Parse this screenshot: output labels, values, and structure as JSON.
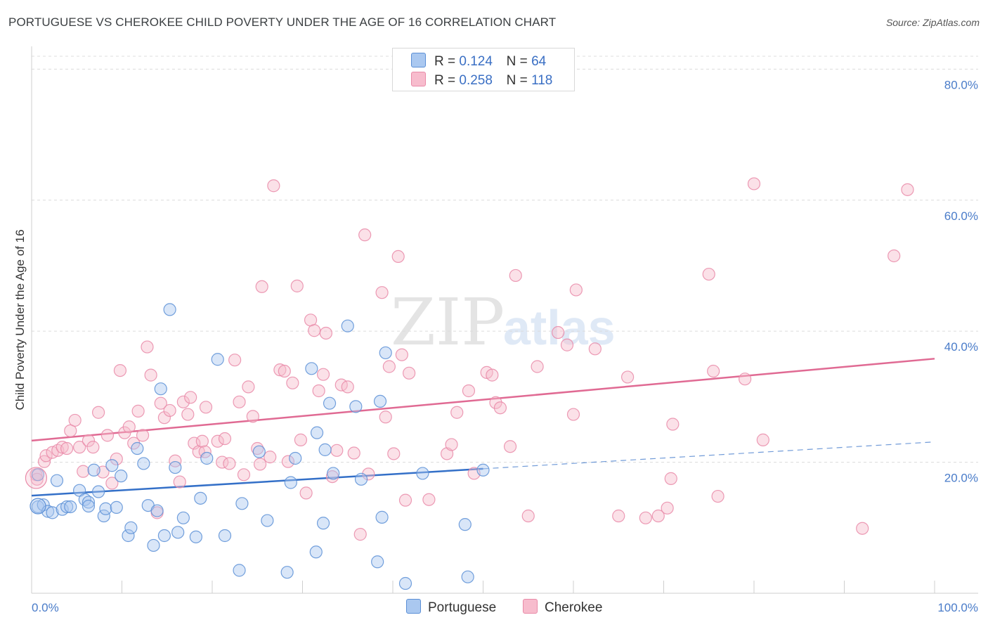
{
  "title": "PORTUGUESE VS CHEROKEE CHILD POVERTY UNDER THE AGE OF 16 CORRELATION CHART",
  "source": "Source: ZipAtlas.com",
  "watermark": {
    "zip": "ZIP",
    "atlas": "atlas"
  },
  "legend": {
    "r_label": "R =",
    "n_label": "N =",
    "rows": [
      {
        "r": "0.124",
        "n": "64"
      },
      {
        "r": "0.258",
        "n": "118"
      }
    ]
  },
  "colors": {
    "portuguese_fill": "#aac8f0",
    "portuguese_stroke": "#5b8fd6",
    "portuguese_line": "#3470c8",
    "cherokee_fill": "#f7bccd",
    "cherokee_stroke": "#e98aa8",
    "cherokee_line": "#e06a93",
    "grid": "#dcdcdc",
    "tick_text": "#4a7cc9"
  },
  "chart_data": {
    "type": "scatter",
    "title": "PORTUGUESE VS CHEROKEE CHILD POVERTY UNDER THE AGE OF 16 CORRELATION CHART",
    "xlabel": "",
    "ylabel": "Child Poverty Under the Age of 16",
    "xlim": [
      0,
      100
    ],
    "ylim": [
      0,
      80
    ],
    "x_tick_labels": [
      "0.0%",
      "100.0%"
    ],
    "y_ticks": [
      20,
      40,
      60,
      80
    ],
    "y_tick_labels": [
      "20.0%",
      "40.0%",
      "60.0%",
      "80.0%"
    ],
    "grid": true,
    "legend_position": "bottom",
    "series": [
      {
        "name": "Portuguese",
        "r": 0.124,
        "n": 64,
        "trend": {
          "x": [
            0,
            50
          ],
          "y": [
            14.9,
            19.0
          ]
        },
        "trend_ext": {
          "x": [
            50,
            100
          ],
          "y": [
            19.0,
            23.1
          ]
        },
        "points": [
          [
            0.7,
            18.1
          ],
          [
            0.7,
            13.2
          ],
          [
            1.3,
            13.5
          ],
          [
            1.8,
            12.5
          ],
          [
            2.3,
            12.3
          ],
          [
            2.8,
            17.2
          ],
          [
            3.4,
            12.8
          ],
          [
            3.9,
            13.2
          ],
          [
            4.3,
            13.2
          ],
          [
            5.3,
            15.7
          ],
          [
            5.9,
            14.3
          ],
          [
            6.3,
            13.9
          ],
          [
            6.3,
            13.3
          ],
          [
            6.9,
            18.8
          ],
          [
            7.4,
            15.5
          ],
          [
            8.0,
            11.8
          ],
          [
            8.2,
            12.9
          ],
          [
            8.9,
            19.5
          ],
          [
            9.4,
            13.1
          ],
          [
            9.9,
            17.9
          ],
          [
            10.7,
            8.8
          ],
          [
            11.0,
            10.0
          ],
          [
            11.7,
            22.1
          ],
          [
            12.4,
            19.8
          ],
          [
            12.9,
            13.4
          ],
          [
            13.5,
            7.3
          ],
          [
            13.9,
            12.6
          ],
          [
            14.3,
            31.2
          ],
          [
            14.7,
            8.8
          ],
          [
            15.3,
            43.3
          ],
          [
            15.9,
            19.2
          ],
          [
            16.2,
            9.3
          ],
          [
            16.8,
            11.5
          ],
          [
            18.2,
            8.6
          ],
          [
            18.7,
            14.5
          ],
          [
            19.4,
            20.6
          ],
          [
            20.6,
            35.7
          ],
          [
            21.4,
            8.8
          ],
          [
            23.0,
            3.5
          ],
          [
            23.3,
            13.7
          ],
          [
            25.2,
            21.6
          ],
          [
            26.1,
            11.1
          ],
          [
            28.3,
            3.2
          ],
          [
            28.7,
            16.9
          ],
          [
            29.2,
            20.6
          ],
          [
            31.0,
            34.3
          ],
          [
            31.5,
            6.3
          ],
          [
            31.6,
            24.5
          ],
          [
            32.3,
            10.7
          ],
          [
            32.5,
            21.9
          ],
          [
            33.0,
            29.0
          ],
          [
            33.4,
            18.3
          ],
          [
            35.0,
            40.8
          ],
          [
            35.9,
            28.5
          ],
          [
            36.5,
            17.4
          ],
          [
            38.3,
            4.8
          ],
          [
            38.6,
            29.3
          ],
          [
            38.8,
            11.6
          ],
          [
            39.2,
            36.7
          ],
          [
            41.4,
            1.5
          ],
          [
            43.3,
            18.3
          ],
          [
            48.0,
            10.5
          ],
          [
            48.3,
            2.5
          ],
          [
            50.0,
            18.8
          ]
        ]
      },
      {
        "name": "Cherokee",
        "r": 0.258,
        "n": 118,
        "trend": {
          "x": [
            0,
            100
          ],
          "y": [
            23.3,
            35.8
          ]
        },
        "points": [
          [
            0.5,
            18.1
          ],
          [
            0.6,
            17.4
          ],
          [
            1.4,
            20.1
          ],
          [
            1.6,
            21.0
          ],
          [
            2.3,
            21.5
          ],
          [
            2.9,
            21.8
          ],
          [
            3.4,
            22.3
          ],
          [
            3.9,
            22.1
          ],
          [
            4.3,
            24.8
          ],
          [
            4.8,
            26.4
          ],
          [
            5.3,
            22.3
          ],
          [
            5.7,
            18.6
          ],
          [
            6.3,
            23.3
          ],
          [
            6.8,
            22.3
          ],
          [
            7.4,
            27.6
          ],
          [
            7.9,
            18.5
          ],
          [
            8.4,
            24.1
          ],
          [
            8.9,
            16.8
          ],
          [
            9.4,
            20.5
          ],
          [
            9.8,
            34.0
          ],
          [
            10.3,
            24.5
          ],
          [
            10.8,
            25.4
          ],
          [
            11.3,
            22.9
          ],
          [
            11.8,
            27.8
          ],
          [
            12.3,
            24.1
          ],
          [
            12.8,
            37.6
          ],
          [
            13.2,
            33.3
          ],
          [
            13.9,
            12.3
          ],
          [
            14.3,
            29.0
          ],
          [
            14.7,
            26.8
          ],
          [
            15.3,
            27.9
          ],
          [
            15.9,
            20.2
          ],
          [
            16.4,
            17.0
          ],
          [
            16.8,
            29.2
          ],
          [
            17.3,
            27.3
          ],
          [
            17.6,
            29.9
          ],
          [
            18.0,
            22.9
          ],
          [
            18.5,
            21.6
          ],
          [
            18.9,
            23.2
          ],
          [
            19.2,
            21.6
          ],
          [
            19.3,
            28.4
          ],
          [
            20.6,
            23.2
          ],
          [
            21.1,
            20.0
          ],
          [
            21.4,
            23.6
          ],
          [
            21.9,
            19.8
          ],
          [
            22.5,
            35.6
          ],
          [
            23.0,
            29.2
          ],
          [
            23.5,
            18.1
          ],
          [
            24.0,
            31.5
          ],
          [
            24.5,
            27.0
          ],
          [
            25.0,
            22.1
          ],
          [
            25.3,
            19.7
          ],
          [
            25.5,
            46.8
          ],
          [
            26.4,
            20.8
          ],
          [
            26.8,
            62.2
          ],
          [
            27.5,
            34.1
          ],
          [
            28.0,
            33.9
          ],
          [
            28.4,
            20.1
          ],
          [
            28.9,
            32.1
          ],
          [
            29.4,
            46.9
          ],
          [
            29.8,
            23.4
          ],
          [
            30.4,
            15.3
          ],
          [
            30.9,
            41.7
          ],
          [
            31.3,
            40.1
          ],
          [
            31.8,
            30.9
          ],
          [
            32.3,
            33.4
          ],
          [
            32.6,
            39.7
          ],
          [
            33.3,
            17.8
          ],
          [
            33.8,
            21.8
          ],
          [
            34.3,
            31.8
          ],
          [
            35.0,
            31.5
          ],
          [
            35.7,
            21.4
          ],
          [
            36.4,
            9.0
          ],
          [
            36.9,
            54.7
          ],
          [
            37.3,
            18.2
          ],
          [
            38.8,
            45.9
          ],
          [
            39.2,
            26.9
          ],
          [
            39.6,
            34.6
          ],
          [
            40.1,
            21.3
          ],
          [
            40.6,
            51.4
          ],
          [
            41.0,
            36.4
          ],
          [
            41.4,
            14.2
          ],
          [
            41.8,
            33.6
          ],
          [
            44.0,
            14.3
          ],
          [
            46.0,
            21.3
          ],
          [
            46.5,
            22.7
          ],
          [
            47.1,
            27.6
          ],
          [
            48.4,
            30.9
          ],
          [
            49.0,
            18.3
          ],
          [
            50.4,
            33.7
          ],
          [
            51.0,
            33.3
          ],
          [
            51.4,
            29.1
          ],
          [
            51.9,
            28.3
          ],
          [
            53.0,
            22.4
          ],
          [
            53.6,
            48.5
          ],
          [
            55.0,
            11.8
          ],
          [
            56.0,
            34.6
          ],
          [
            58.3,
            39.8
          ],
          [
            59.3,
            37.9
          ],
          [
            60.0,
            27.3
          ],
          [
            60.3,
            46.3
          ],
          [
            62.4,
            37.3
          ],
          [
            65.0,
            11.8
          ],
          [
            66.0,
            33.0
          ],
          [
            68.0,
            11.5
          ],
          [
            69.4,
            11.8
          ],
          [
            70.4,
            13.0
          ],
          [
            70.8,
            17.5
          ],
          [
            71.0,
            25.8
          ],
          [
            75.0,
            48.7
          ],
          [
            75.5,
            33.9
          ],
          [
            76.0,
            14.8
          ],
          [
            79.0,
            32.7
          ],
          [
            80.0,
            62.5
          ],
          [
            81.0,
            23.4
          ],
          [
            92.0,
            9.9
          ],
          [
            95.5,
            51.5
          ],
          [
            97.0,
            61.6
          ]
        ]
      }
    ]
  },
  "bottom_legend": [
    {
      "label": "Portuguese"
    },
    {
      "label": "Cherokee"
    }
  ]
}
